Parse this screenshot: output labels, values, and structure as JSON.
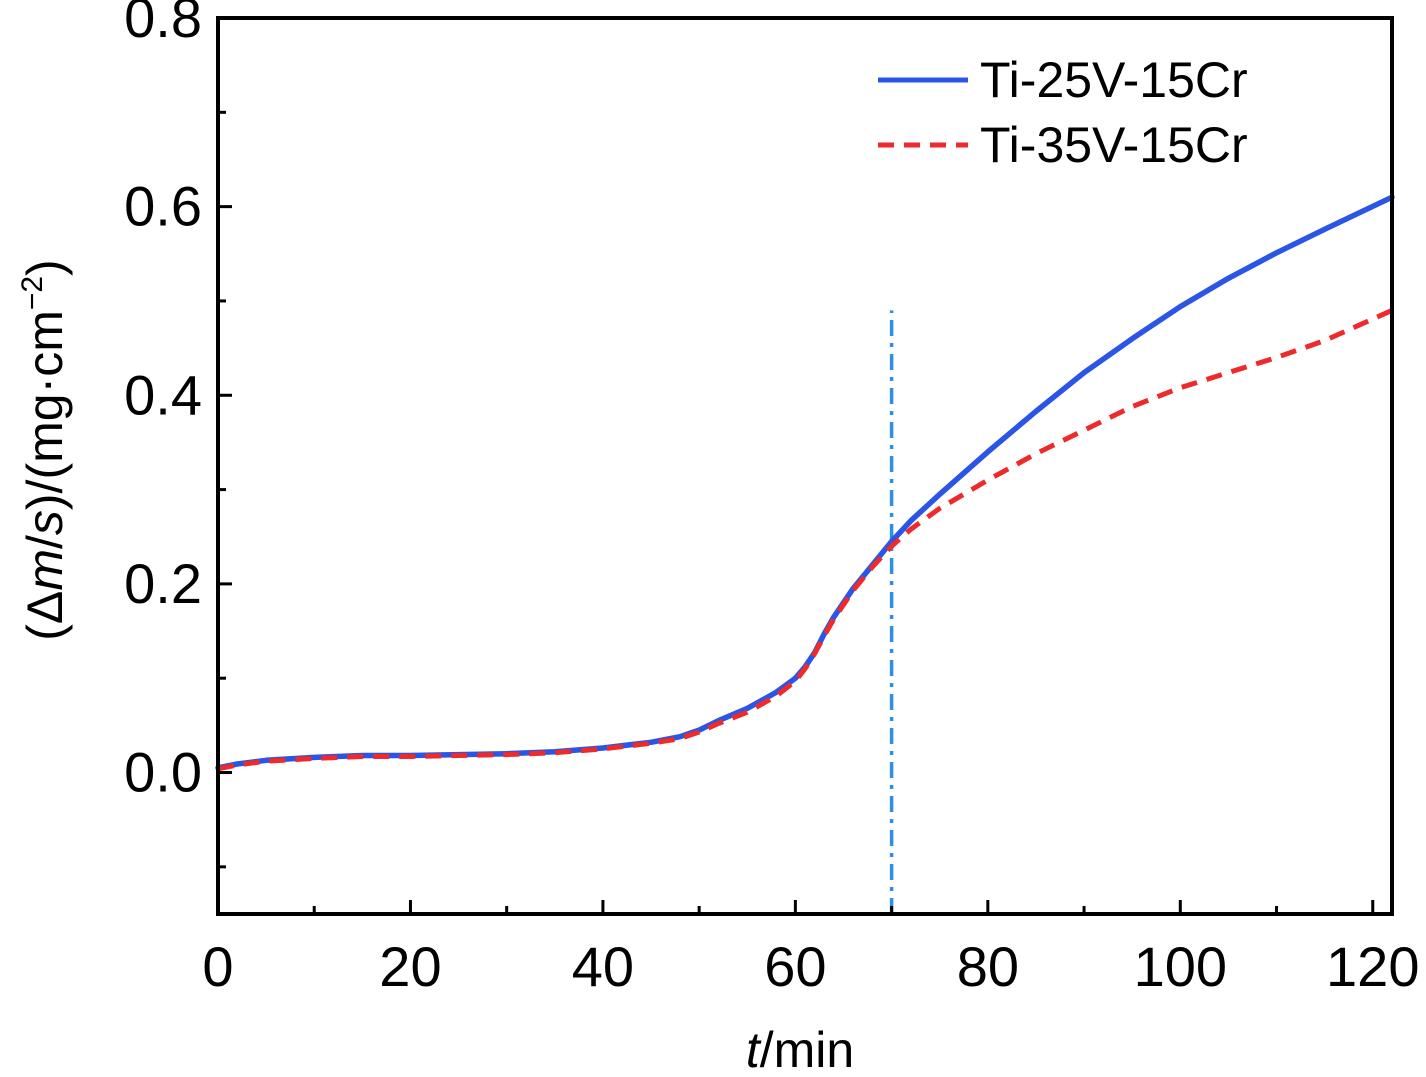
{
  "chart_data": {
    "type": "line",
    "title": "",
    "xlabel": {
      "italic": "t",
      "rest": "/min"
    },
    "ylabel": {
      "p1": "(Δ",
      "m": "m",
      "p2": "/",
      "s": "s",
      "p3": ")/(mg·cm",
      "sup": "−2",
      "p4": ")"
    },
    "xlim": [
      0,
      122
    ],
    "ylim": [
      -0.15,
      0.8
    ],
    "x_ticks": [
      0,
      20,
      40,
      60,
      80,
      100,
      120
    ],
    "x_tick_labels": [
      "0",
      "20",
      "40",
      "60",
      "80",
      "100",
      "120"
    ],
    "y_ticks": [
      0.0,
      0.2,
      0.4,
      0.6,
      0.8
    ],
    "y_tick_labels": [
      "0.0",
      "0.2",
      "0.4",
      "0.6",
      "0.8"
    ],
    "grid": false,
    "legend_position": "top-right",
    "reference_line": {
      "x": 70,
      "y_from": -0.15,
      "y_to": 0.49,
      "style": "dash-dot",
      "color": "#2f8fe8"
    },
    "series": [
      {
        "name": "Ti-25V-15Cr",
        "color": "#2a55e6",
        "style": "solid",
        "x": [
          0,
          2,
          5,
          10,
          15,
          20,
          25,
          30,
          35,
          40,
          45,
          48,
          50,
          52,
          55,
          58,
          60,
          61,
          62,
          63,
          64,
          66,
          68,
          70,
          72,
          75,
          80,
          85,
          90,
          95,
          100,
          105,
          110,
          115,
          122
        ],
        "y": [
          0.005,
          0.009,
          0.013,
          0.016,
          0.018,
          0.018,
          0.019,
          0.02,
          0.022,
          0.026,
          0.032,
          0.038,
          0.045,
          0.055,
          0.068,
          0.085,
          0.1,
          0.112,
          0.127,
          0.147,
          0.165,
          0.195,
          0.22,
          0.245,
          0.267,
          0.295,
          0.34,
          0.383,
          0.424,
          0.46,
          0.494,
          0.524,
          0.551,
          0.576,
          0.61
        ]
      },
      {
        "name": "Ti-35V-15Cr",
        "color": "#ee2a2a",
        "style": "dashed",
        "x": [
          0,
          2,
          5,
          10,
          15,
          20,
          25,
          30,
          35,
          40,
          45,
          48,
          50,
          52,
          55,
          58,
          60,
          61,
          62,
          63,
          64,
          66,
          68,
          70,
          72,
          75,
          80,
          85,
          90,
          95,
          100,
          105,
          110,
          115,
          122
        ],
        "y": [
          0.004,
          0.008,
          0.012,
          0.015,
          0.017,
          0.017,
          0.018,
          0.019,
          0.021,
          0.025,
          0.031,
          0.036,
          0.043,
          0.052,
          0.064,
          0.081,
          0.097,
          0.11,
          0.126,
          0.145,
          0.163,
          0.193,
          0.218,
          0.24,
          0.258,
          0.28,
          0.31,
          0.338,
          0.363,
          0.388,
          0.408,
          0.424,
          0.44,
          0.458,
          0.49
        ]
      }
    ]
  }
}
